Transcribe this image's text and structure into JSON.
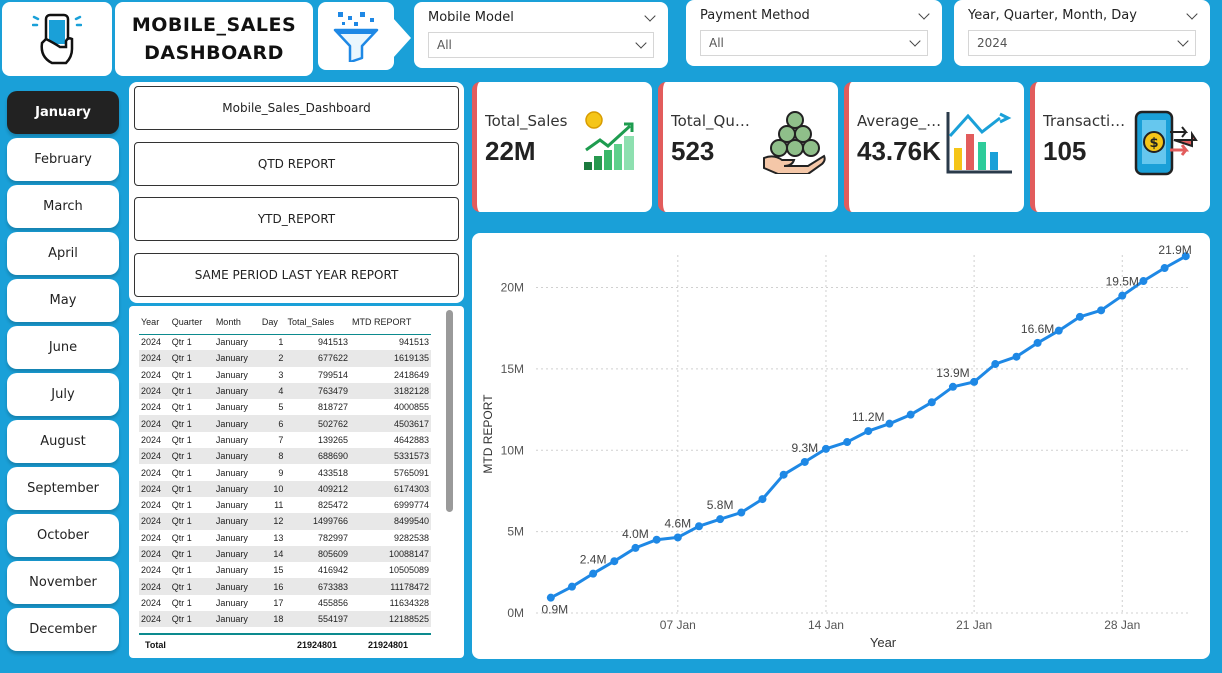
{
  "header": {
    "title_line1": "MOBILE_SALES",
    "title_line2": "DASHBOARD",
    "logo_icon": "phone-hand-icon",
    "filter_icon": "funnel-icon"
  },
  "slicers": [
    {
      "title": "Mobile Model",
      "value": "All"
    },
    {
      "title": "Payment Method",
      "value": "All"
    },
    {
      "title": "Year, Quarter, Month, Day",
      "value": "2024"
    }
  ],
  "months": [
    "January",
    "February",
    "March",
    "April",
    "May",
    "June",
    "July",
    "August",
    "September",
    "October",
    "November",
    "December"
  ],
  "active_month": "January",
  "nav_buttons": [
    "Mobile_Sales_Dashboard",
    "QTD REPORT",
    "YTD_REPORT",
    "SAME PERIOD LAST YEAR REPORT"
  ],
  "table": {
    "columns": [
      "Year",
      "Quarter",
      "Month",
      "Day",
      "Total_Sales",
      "MTD REPORT"
    ],
    "rows": [
      [
        "2024",
        "Qtr 1",
        "January",
        "1",
        "941513",
        "941513"
      ],
      [
        "2024",
        "Qtr 1",
        "January",
        "2",
        "677622",
        "1619135"
      ],
      [
        "2024",
        "Qtr 1",
        "January",
        "3",
        "799514",
        "2418649"
      ],
      [
        "2024",
        "Qtr 1",
        "January",
        "4",
        "763479",
        "3182128"
      ],
      [
        "2024",
        "Qtr 1",
        "January",
        "5",
        "818727",
        "4000855"
      ],
      [
        "2024",
        "Qtr 1",
        "January",
        "6",
        "502762",
        "4503617"
      ],
      [
        "2024",
        "Qtr 1",
        "January",
        "7",
        "139265",
        "4642883"
      ],
      [
        "2024",
        "Qtr 1",
        "January",
        "8",
        "688690",
        "5331573"
      ],
      [
        "2024",
        "Qtr 1",
        "January",
        "9",
        "433518",
        "5765091"
      ],
      [
        "2024",
        "Qtr 1",
        "January",
        "10",
        "409212",
        "6174303"
      ],
      [
        "2024",
        "Qtr 1",
        "January",
        "11",
        "825472",
        "6999774"
      ],
      [
        "2024",
        "Qtr 1",
        "January",
        "12",
        "1499766",
        "8499540"
      ],
      [
        "2024",
        "Qtr 1",
        "January",
        "13",
        "782997",
        "9282538"
      ],
      [
        "2024",
        "Qtr 1",
        "January",
        "14",
        "805609",
        "10088147"
      ],
      [
        "2024",
        "Qtr 1",
        "January",
        "15",
        "416942",
        "10505089"
      ],
      [
        "2024",
        "Qtr 1",
        "January",
        "16",
        "673383",
        "11178472"
      ],
      [
        "2024",
        "Qtr 1",
        "January",
        "17",
        "455856",
        "11634328"
      ],
      [
        "2024",
        "Qtr 1",
        "January",
        "18",
        "554197",
        "12188525"
      ]
    ],
    "total_label": "Total",
    "total_sales": "21924801",
    "total_mtd": "21924801"
  },
  "kpis": [
    {
      "label": "Total_Sales",
      "value": "22M",
      "icon": "sales-growth-icon"
    },
    {
      "label": "Total_Quan...",
      "value": "523",
      "icon": "coins-hand-icon"
    },
    {
      "label": "Average_Pr...",
      "value": "43.76K",
      "icon": "bar-chart-icon"
    },
    {
      "label": "Transactions",
      "value": "105",
      "icon": "mobile-payment-icon"
    }
  ],
  "colors": {
    "accent": "#1aa0d8",
    "line": "#1e88e5",
    "kpi_border": "#e25c5c"
  },
  "chart_data": {
    "type": "line",
    "xlabel": "Year",
    "ylabel": "MTD REPORT",
    "ylim": [
      0,
      22000000
    ],
    "yticks": [
      {
        "v": 0,
        "t": "0M"
      },
      {
        "v": 5000000,
        "t": "5M"
      },
      {
        "v": 10000000,
        "t": "10M"
      },
      {
        "v": 15000000,
        "t": "15M"
      },
      {
        "v": 20000000,
        "t": "20M"
      }
    ],
    "xticks": [
      {
        "day": 7,
        "t": "07 Jan"
      },
      {
        "day": 14,
        "t": "14 Jan"
      },
      {
        "day": 21,
        "t": "21 Jan"
      },
      {
        "day": 28,
        "t": "28 Jan"
      }
    ],
    "x_days": [
      1,
      2,
      3,
      4,
      5,
      6,
      7,
      8,
      9,
      10,
      11,
      12,
      13,
      14,
      15,
      16,
      17,
      18,
      19,
      20,
      21,
      22,
      23,
      24,
      25,
      26,
      27,
      28,
      29,
      30,
      31
    ],
    "values": [
      941513,
      1619135,
      2418649,
      3182128,
      4000855,
      4503617,
      4642883,
      5331573,
      5765091,
      6174303,
      6999774,
      8499540,
      9282538,
      10088147,
      10505089,
      11178472,
      11634328,
      12188525,
      12950000,
      13900000,
      14200000,
      15300000,
      15750000,
      16600000,
      17350000,
      18200000,
      18600000,
      19500000,
      20400000,
      21200000,
      21924801
    ],
    "data_labels": [
      {
        "day": 1,
        "t": "0.9M"
      },
      {
        "day": 3,
        "t": "2.4M"
      },
      {
        "day": 5,
        "t": "4.0M"
      },
      {
        "day": 7,
        "t": "4.6M"
      },
      {
        "day": 9,
        "t": "5.8M"
      },
      {
        "day": 13,
        "t": "9.3M"
      },
      {
        "day": 16,
        "t": "11.2M"
      },
      {
        "day": 20,
        "t": "13.9M"
      },
      {
        "day": 24,
        "t": "16.6M"
      },
      {
        "day": 28,
        "t": "19.5M"
      },
      {
        "day": 31,
        "t": "21.9M"
      }
    ]
  }
}
